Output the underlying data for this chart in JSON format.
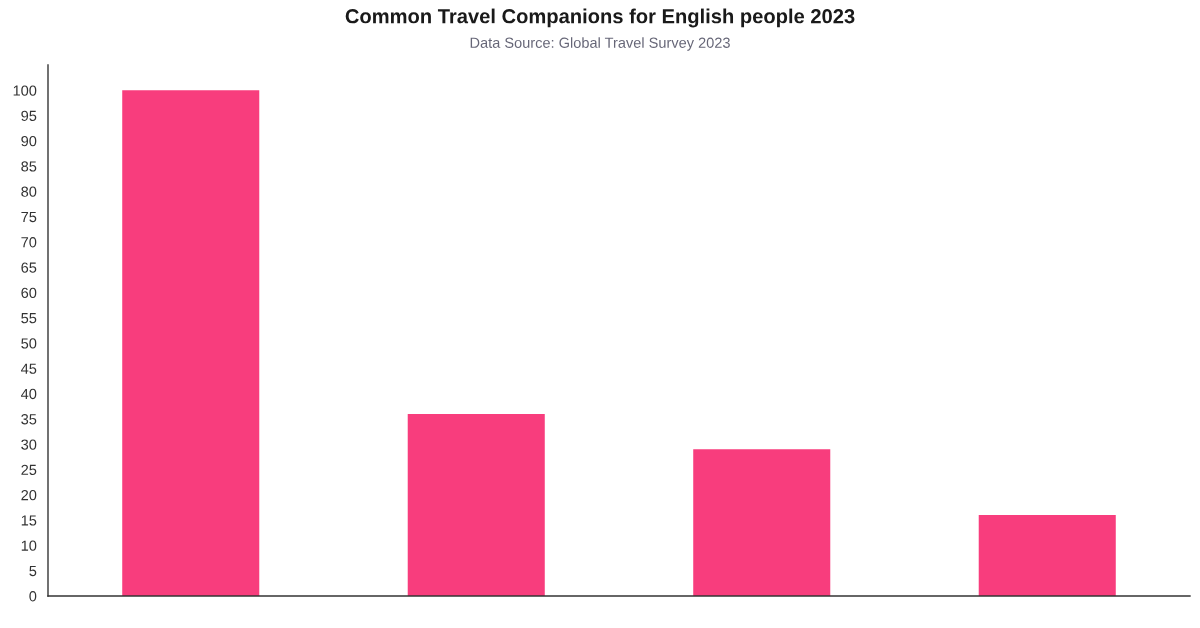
{
  "chart_data": {
    "type": "bar",
    "title": "Common Travel Companions for English people 2023",
    "subtitle": "Data Source: Global Travel Survey 2023",
    "categories": [
      null,
      null,
      null,
      null
    ],
    "values": [
      100,
      36,
      29,
      16
    ],
    "color": "#f83d7d",
    "ylim": [
      0,
      105
    ],
    "yticks": [
      0,
      5,
      10,
      15,
      20,
      25,
      30,
      35,
      40,
      45,
      50,
      55,
      60,
      65,
      70,
      75,
      80,
      85,
      90,
      95,
      100
    ],
    "grid": false
  }
}
